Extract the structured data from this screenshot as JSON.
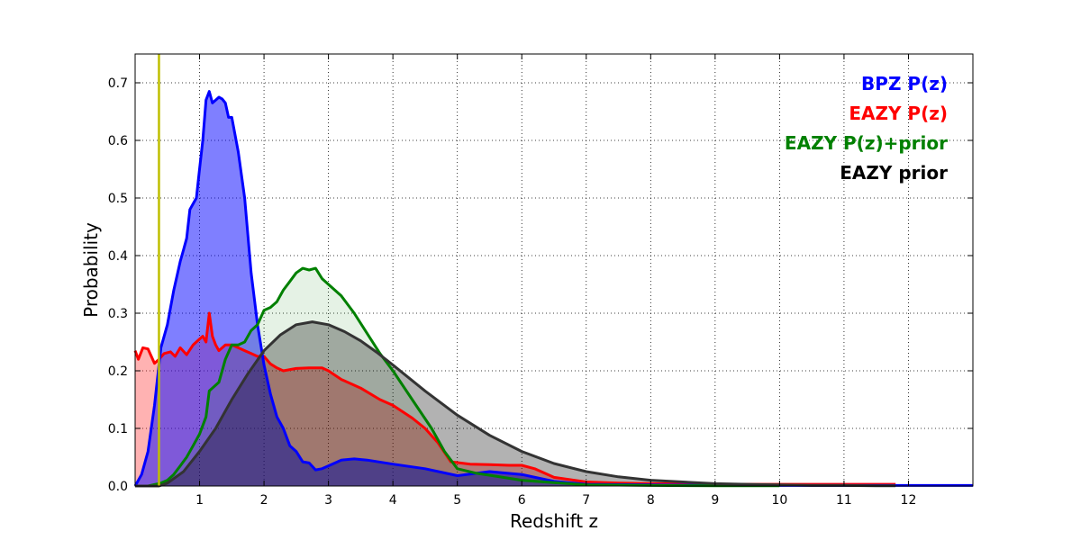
{
  "chart_data": {
    "type": "area",
    "title": "",
    "xlabel": "Redshift z",
    "ylabel": "Probability",
    "xlim": [
      0,
      13
    ],
    "ylim": [
      0,
      0.75
    ],
    "x_ticks": [
      1,
      2,
      3,
      4,
      5,
      6,
      7,
      8,
      9,
      10,
      11,
      12
    ],
    "y_ticks": [
      0.0,
      0.1,
      0.2,
      0.3,
      0.4,
      0.5,
      0.6,
      0.7
    ],
    "grid": true,
    "legend_position": "top-right",
    "marker_line": {
      "x": 0.37,
      "color": "#bfbf00"
    },
    "series": [
      {
        "name": "EAZY P(z)",
        "color": "#ff0000",
        "fill": "#ff0000",
        "fill_opacity": 0.3,
        "x": [
          0,
          0.05,
          0.12,
          0.2,
          0.3,
          0.37,
          0.45,
          0.55,
          0.62,
          0.7,
          0.8,
          0.9,
          1.0,
          1.05,
          1.1,
          1.15,
          1.2,
          1.25,
          1.3,
          1.4,
          1.5,
          1.6,
          1.7,
          1.8,
          1.9,
          2.0,
          2.1,
          2.2,
          2.3,
          2.5,
          2.7,
          2.9,
          3.0,
          3.2,
          3.5,
          3.8,
          4.0,
          4.3,
          4.5,
          4.7,
          4.9,
          5.2,
          5.5,
          5.8,
          6.0,
          6.2,
          6.5,
          7.0,
          7.5,
          8.0,
          9.0,
          10.0,
          11.0,
          11.8
        ],
        "y": [
          0.235,
          0.22,
          0.24,
          0.238,
          0.213,
          0.22,
          0.23,
          0.233,
          0.225,
          0.24,
          0.228,
          0.245,
          0.255,
          0.26,
          0.25,
          0.3,
          0.26,
          0.245,
          0.235,
          0.245,
          0.245,
          0.24,
          0.235,
          0.23,
          0.225,
          0.225,
          0.212,
          0.205,
          0.2,
          0.204,
          0.205,
          0.205,
          0.2,
          0.185,
          0.17,
          0.15,
          0.14,
          0.118,
          0.1,
          0.075,
          0.042,
          0.038,
          0.037,
          0.036,
          0.036,
          0.03,
          0.015,
          0.007,
          0.005,
          0.004,
          0.003,
          0.003,
          0.003,
          0.003
        ]
      },
      {
        "name": "BPZ P(z)",
        "color": "#0000ff",
        "fill": "#0000ff",
        "fill_opacity": 0.5,
        "x": [
          0,
          0.1,
          0.2,
          0.3,
          0.4,
          0.5,
          0.6,
          0.7,
          0.75,
          0.8,
          0.85,
          0.9,
          0.95,
          1.0,
          1.05,
          1.1,
          1.15,
          1.2,
          1.25,
          1.3,
          1.35,
          1.4,
          1.45,
          1.5,
          1.6,
          1.7,
          1.8,
          1.9,
          2.0,
          2.1,
          2.2,
          2.3,
          2.4,
          2.5,
          2.6,
          2.7,
          2.8,
          2.9,
          3.0,
          3.2,
          3.4,
          3.6,
          4.0,
          4.5,
          5.0,
          5.5,
          6.0,
          6.5,
          7.0,
          8.0,
          9.0,
          10.0,
          11.0,
          12.0,
          13.0
        ],
        "y": [
          0.0,
          0.02,
          0.06,
          0.14,
          0.24,
          0.28,
          0.34,
          0.39,
          0.41,
          0.43,
          0.48,
          0.49,
          0.5,
          0.55,
          0.6,
          0.67,
          0.685,
          0.665,
          0.67,
          0.675,
          0.672,
          0.665,
          0.64,
          0.64,
          0.58,
          0.5,
          0.37,
          0.28,
          0.21,
          0.16,
          0.12,
          0.1,
          0.07,
          0.06,
          0.042,
          0.04,
          0.028,
          0.03,
          0.035,
          0.045,
          0.047,
          0.045,
          0.038,
          0.03,
          0.018,
          0.025,
          0.02,
          0.008,
          0.003,
          0.002,
          0.001,
          0.001,
          0.001,
          0.001,
          0.001
        ]
      },
      {
        "name": "EAZY P(z)+prior",
        "color": "#008000",
        "fill": "#008000",
        "fill_opacity": 0.1,
        "x": [
          0,
          0.2,
          0.4,
          0.5,
          0.6,
          0.7,
          0.8,
          0.9,
          1.0,
          1.1,
          1.15,
          1.2,
          1.3,
          1.4,
          1.5,
          1.6,
          1.7,
          1.8,
          1.9,
          2.0,
          2.1,
          2.2,
          2.3,
          2.4,
          2.5,
          2.6,
          2.7,
          2.8,
          2.9,
          3.0,
          3.2,
          3.4,
          3.6,
          3.8,
          4.0,
          4.3,
          4.6,
          4.8,
          5.0,
          5.3,
          5.6,
          6.0,
          6.5,
          7.0,
          7.5,
          8.0,
          9.0,
          10.0
        ],
        "y": [
          0.0,
          0.0,
          0.005,
          0.01,
          0.02,
          0.035,
          0.05,
          0.07,
          0.09,
          0.12,
          0.165,
          0.17,
          0.18,
          0.22,
          0.245,
          0.245,
          0.25,
          0.27,
          0.28,
          0.305,
          0.31,
          0.32,
          0.34,
          0.355,
          0.37,
          0.378,
          0.375,
          0.378,
          0.36,
          0.35,
          0.33,
          0.3,
          0.265,
          0.23,
          0.2,
          0.15,
          0.1,
          0.06,
          0.03,
          0.022,
          0.017,
          0.01,
          0.006,
          0.002,
          0.0015,
          0.001,
          0.0005,
          0.0003
        ]
      },
      {
        "name": "EAZY prior",
        "color": "#000000",
        "fill": "#000000",
        "fill_opacity": 0.3,
        "x": [
          0,
          0.37,
          0.5,
          0.75,
          1.0,
          1.25,
          1.5,
          1.75,
          2.0,
          2.25,
          2.5,
          2.75,
          3.0,
          3.25,
          3.5,
          3.75,
          4.0,
          4.5,
          5.0,
          5.5,
          6.0,
          6.5,
          7.0,
          7.5,
          8.0,
          8.5,
          9.0,
          9.5,
          10.0,
          10.5,
          11.0,
          11.5,
          11.8
        ],
        "y": [
          0.0,
          0.0,
          0.005,
          0.025,
          0.06,
          0.1,
          0.15,
          0.195,
          0.235,
          0.262,
          0.28,
          0.285,
          0.28,
          0.268,
          0.252,
          0.232,
          0.21,
          0.165,
          0.123,
          0.088,
          0.06,
          0.039,
          0.025,
          0.016,
          0.01,
          0.007,
          0.004,
          0.003,
          0.002,
          0.001,
          0.001,
          0.0005,
          0.0005
        ]
      }
    ],
    "legend": [
      {
        "label": "BPZ P(z)",
        "color": "#0000ff"
      },
      {
        "label": "EAZY P(z)",
        "color": "#ff0000"
      },
      {
        "label": "EAZY P(z)+prior",
        "color": "#008000"
      },
      {
        "label": "EAZY prior",
        "color": "#000000"
      }
    ]
  }
}
